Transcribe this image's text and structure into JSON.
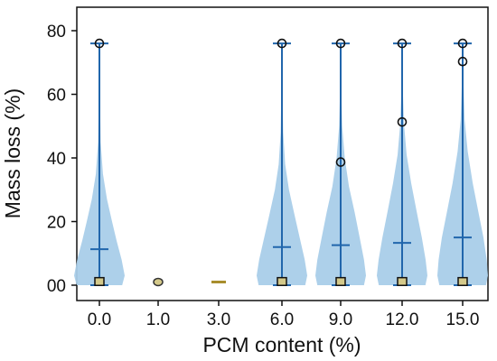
{
  "chart_data": {
    "type": "violin",
    "xlabel": "PCM content (%)",
    "ylabel": "Mass loss (%)",
    "ylim": [
      -5,
      82
    ],
    "yticks": [
      0,
      20,
      40,
      60,
      80
    ],
    "ytick_labels": [
      "00",
      "20",
      "40",
      "60",
      "80"
    ],
    "categories": [
      "0.0",
      "1.0",
      "3.0",
      "6.0",
      "9.0",
      "12.0",
      "15.0"
    ],
    "grid": false,
    "legend": "none",
    "colors": {
      "violin_fill": "#a9cde9",
      "line": "#2166ac",
      "box": "#d4c98a",
      "outlier_edge": "#111111"
    },
    "groups": [
      {
        "category": "0.0",
        "max": 76,
        "min": 0,
        "mean": 11.3,
        "median": 1.2,
        "q1": 0.5,
        "q3": 1.8,
        "outliers": [
          76
        ],
        "density": [
          [
            0,
            0.9
          ],
          [
            3,
            1.0
          ],
          [
            8,
            0.88
          ],
          [
            14,
            0.68
          ],
          [
            20,
            0.5
          ],
          [
            27,
            0.3
          ],
          [
            35,
            0.14
          ],
          [
            45,
            0.05
          ],
          [
            60,
            0.02
          ],
          [
            76,
            0.01
          ]
        ]
      },
      {
        "category": "1.0",
        "max": 1.0,
        "min": 1.0,
        "mean": 1.0,
        "median": 1.0,
        "q1": 1.0,
        "q3": 1.0,
        "outliers": [
          1.0
        ],
        "density": []
      },
      {
        "category": "3.0",
        "max": 1.0,
        "min": 1.0,
        "mean": 1.0,
        "median": 1.0,
        "q1": 1.0,
        "q3": 1.0,
        "outliers": [],
        "density": []
      },
      {
        "category": "6.0",
        "max": 76,
        "min": 0,
        "mean": 12.0,
        "median": 1.2,
        "q1": 0.5,
        "q3": 1.8,
        "outliers": [
          76
        ],
        "density": [
          [
            0,
            0.92
          ],
          [
            3,
            1.0
          ],
          [
            8,
            0.9
          ],
          [
            15,
            0.7
          ],
          [
            22,
            0.5
          ],
          [
            30,
            0.28
          ],
          [
            38,
            0.13
          ],
          [
            48,
            0.05
          ],
          [
            62,
            0.02
          ],
          [
            76,
            0.01
          ]
        ]
      },
      {
        "category": "9.0",
        "max": 76,
        "min": 0,
        "mean": 12.6,
        "median": 1.2,
        "q1": 0.5,
        "q3": 1.8,
        "outliers": [
          38.7,
          76
        ],
        "density": [
          [
            0,
            0.92
          ],
          [
            3,
            1.0
          ],
          [
            8,
            0.92
          ],
          [
            15,
            0.75
          ],
          [
            23,
            0.55
          ],
          [
            31,
            0.33
          ],
          [
            40,
            0.16
          ],
          [
            50,
            0.06
          ],
          [
            62,
            0.02
          ],
          [
            76,
            0.01
          ]
        ]
      },
      {
        "category": "12.0",
        "max": 76,
        "min": 0,
        "mean": 13.3,
        "median": 1.2,
        "q1": 0.5,
        "q3": 1.8,
        "outliers": [
          51.3,
          76
        ],
        "density": [
          [
            0,
            0.92
          ],
          [
            3,
            1.0
          ],
          [
            8,
            0.93
          ],
          [
            15,
            0.78
          ],
          [
            23,
            0.58
          ],
          [
            32,
            0.36
          ],
          [
            41,
            0.18
          ],
          [
            51,
            0.07
          ],
          [
            63,
            0.02
          ],
          [
            76,
            0.01
          ]
        ]
      },
      {
        "category": "15.0",
        "max": 76,
        "min": 0,
        "mean": 15.0,
        "median": 1.2,
        "q1": 0.5,
        "q3": 1.8,
        "outliers": [
          70.3,
          76
        ],
        "density": [
          [
            0,
            0.92
          ],
          [
            3,
            1.0
          ],
          [
            8,
            0.95
          ],
          [
            15,
            0.82
          ],
          [
            23,
            0.62
          ],
          [
            32,
            0.4
          ],
          [
            42,
            0.2
          ],
          [
            52,
            0.08
          ],
          [
            64,
            0.03
          ],
          [
            76,
            0.01
          ]
        ]
      }
    ]
  }
}
